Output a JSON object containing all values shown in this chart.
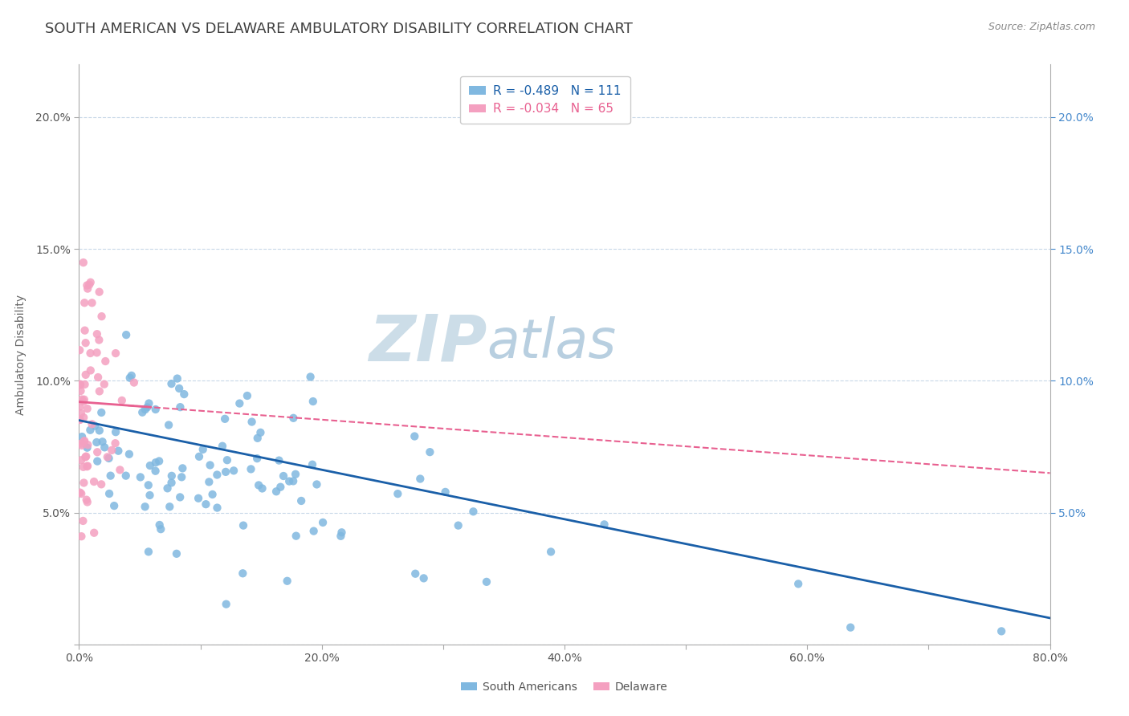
{
  "title": "SOUTH AMERICAN VS DELAWARE AMBULATORY DISABILITY CORRELATION CHART",
  "source_text": "Source: ZipAtlas.com",
  "ylabel": "Ambulatory Disability",
  "xlim": [
    0.0,
    0.8
  ],
  "ylim": [
    0.0,
    0.22
  ],
  "xticks": [
    0.0,
    0.1,
    0.2,
    0.3,
    0.4,
    0.5,
    0.6,
    0.7,
    0.8
  ],
  "xticklabels": [
    "0.0%",
    "",
    "20.0%",
    "",
    "40.0%",
    "",
    "60.0%",
    "",
    "80.0%"
  ],
  "yticks_left": [
    0.0,
    0.05,
    0.1,
    0.15,
    0.2
  ],
  "yticks_right": [
    0.05,
    0.1,
    0.15,
    0.2
  ],
  "yticklabels_left": [
    "",
    "5.0%",
    "10.0%",
    "15.0%",
    "20.0%"
  ],
  "yticklabels_right": [
    "5.0%",
    "10.0%",
    "15.0%",
    "20.0%"
  ],
  "south_american_color": "#80b8e0",
  "delaware_color": "#f4a0c0",
  "south_american_line_color": "#1a5fa8",
  "delaware_line_color": "#e86090",
  "R_sa": -0.489,
  "N_sa": 111,
  "R_del": -0.034,
  "N_del": 65,
  "watermark_zip": "ZIP",
  "watermark_atlas": "atlas",
  "watermark_color_zip": "#c8d8e8",
  "watermark_color_atlas": "#b8cce0",
  "background_color": "#ffffff",
  "grid_color": "#c8d8e8",
  "title_color": "#404040",
  "title_fontsize": 13,
  "axis_label_fontsize": 10,
  "tick_fontsize": 10,
  "legend_fontsize": 11,
  "source_fontsize": 9
}
